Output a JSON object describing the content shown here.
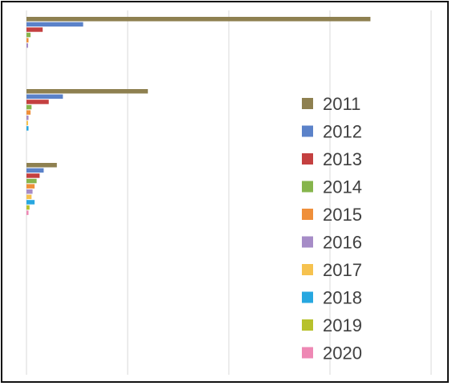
{
  "chart_data": {
    "type": "bar",
    "orientation": "horizontal",
    "grid": true,
    "legend_position": "right",
    "xlim": [
      0,
      4
    ],
    "categories": [
      "",
      "",
      ""
    ],
    "series": [
      {
        "name": "2011",
        "color": "#8E8050",
        "values": [
          3.4,
          1.2,
          0.3
        ]
      },
      {
        "name": "2012",
        "color": "#5B82C9",
        "values": [
          0.56,
          0.36,
          0.17
        ]
      },
      {
        "name": "2013",
        "color": "#C44040",
        "values": [
          0.16,
          0.22,
          0.13
        ]
      },
      {
        "name": "2014",
        "color": "#86B54C",
        "values": [
          0.04,
          0.05,
          0.1
        ]
      },
      {
        "name": "2015",
        "color": "#EF8F3A",
        "values": [
          0.02,
          0.04,
          0.08
        ]
      },
      {
        "name": "2016",
        "color": "#A68CC7",
        "values": [
          0.01,
          0.02,
          0.06
        ]
      },
      {
        "name": "2017",
        "color": "#F6C24F",
        "values": [
          0.0,
          0.01,
          0.05
        ]
      },
      {
        "name": "2018",
        "color": "#27A7E0",
        "values": [
          0.0,
          0.02,
          0.08
        ]
      },
      {
        "name": "2019",
        "color": "#B7C12C",
        "values": [
          0.0,
          0.0,
          0.03
        ]
      },
      {
        "name": "2020",
        "color": "#EE88B4",
        "values": [
          0.0,
          0.0,
          0.02
        ]
      }
    ]
  }
}
